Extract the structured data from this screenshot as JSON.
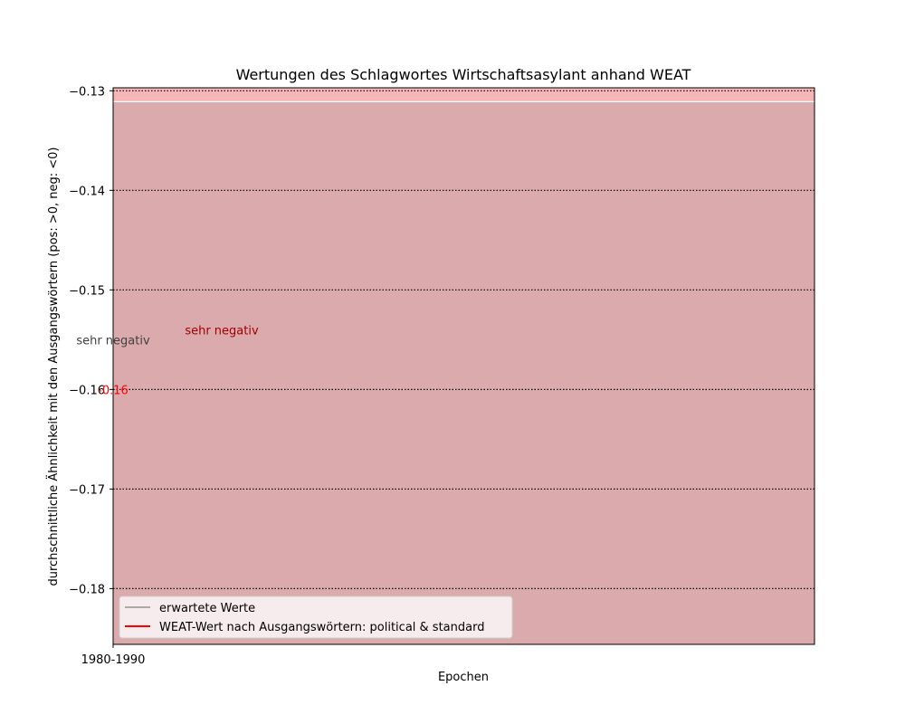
{
  "colors": {
    "background": "#dbaaad",
    "top_band": "#f4b6b6",
    "expected_line": "#808080",
    "weat_line": "#ff0000",
    "annotation_gray": "#404040",
    "annotation_darkred": "#a00000",
    "value_label": "#ff0000",
    "grid": "#000000",
    "legend_bg": "#f7eced"
  },
  "chart_data": {
    "type": "line",
    "title": "Wertungen des Schlagwortes Wirtschaftsasylant anhand WEAT",
    "xlabel": "Epochen",
    "ylabel": "durchschnittliche Ähnlichkeit mit den Ausgangswörtern (pos: >0, neg: <0)",
    "categories": [
      "1980-1990"
    ],
    "ylim": [
      -0.1856,
      -0.1297
    ],
    "yticks": [
      -0.13,
      -0.14,
      -0.15,
      -0.16,
      -0.17,
      -0.18
    ],
    "ytick_labels": [
      "−0.13",
      "−0.14",
      "−0.15",
      "−0.16",
      "−0.17",
      "−0.18"
    ],
    "grid": "horizontal dotted",
    "series": [
      {
        "name": "erwartete Werte",
        "values": [
          -0.155
        ],
        "annotation": "sehr negativ"
      },
      {
        "name": "WEAT-Wert nach Ausgangswörtern: political & standard",
        "values": [
          -0.16
        ],
        "value_label": "-0.16",
        "annotation": "sehr negativ"
      }
    ],
    "bands": [
      {
        "from": -0.1856,
        "to": -0.1311,
        "color": "background"
      },
      {
        "from": -0.1311,
        "to": -0.1297,
        "color": "top_band"
      }
    ],
    "legend_position": "lower-left"
  }
}
